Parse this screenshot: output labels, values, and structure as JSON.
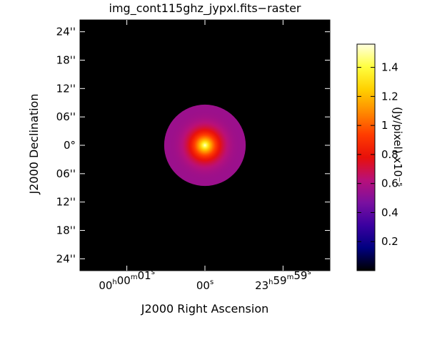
{
  "chart_data": {
    "type": "heatmap",
    "title": "img_cont115ghz_jypxl.fits−raster",
    "xlabel": "J2000 Right Ascension",
    "ylabel": "J2000 Declination",
    "x_ticks": [
      {
        "value": 1,
        "h": "00",
        "m": "00",
        "s": "01"
      },
      {
        "value": 0,
        "h": "",
        "m": "",
        "s": "00"
      },
      {
        "value": -1,
        "h": "23",
        "m": "59",
        "s": "59"
      }
    ],
    "x_units_sup": {
      "h": "h",
      "m": "m",
      "s": "s"
    },
    "xlim": [
      1.6,
      -1.6
    ],
    "y_ticks": [
      {
        "value": 24,
        "label": "24''"
      },
      {
        "value": 18,
        "label": "18''"
      },
      {
        "value": 12,
        "label": "12''"
      },
      {
        "value": 6,
        "label": "06''"
      },
      {
        "value": 0,
        "label": "0°"
      },
      {
        "value": -6,
        "label": "06''"
      },
      {
        "value": -12,
        "label": "12''"
      },
      {
        "value": -18,
        "label": "18''"
      },
      {
        "value": -24,
        "label": "24''"
      }
    ],
    "ylim": [
      -26.5,
      26.5
    ],
    "source": {
      "center_ra_s": 0,
      "center_dec_arcsec": 0,
      "radius_arcsec": 8.6,
      "peak": 1.55,
      "edge": 0.55
    },
    "colorbar": {
      "label": "(Jy/pixel)  x10⁻⁵",
      "min": 0.0,
      "max": 1.56,
      "ticks": [
        0.2,
        0.4,
        0.6,
        0.8,
        1,
        1.2,
        1.4
      ],
      "tick_labels": [
        "0.2",
        "0.4",
        "0.6",
        "0.8",
        "1",
        "1.2",
        "1.4"
      ],
      "colormap": "rainbow-like (black-blue-purple-red-orange-yellow-white)",
      "colors": [
        "#000000",
        "#000080",
        "#3a00a0",
        "#7a10a0",
        "#b8107a",
        "#e8100a",
        "#ff3c00",
        "#ff8a00",
        "#ffd000",
        "#ffff40",
        "#ffffe0"
      ]
    },
    "background_color": "#000000"
  }
}
